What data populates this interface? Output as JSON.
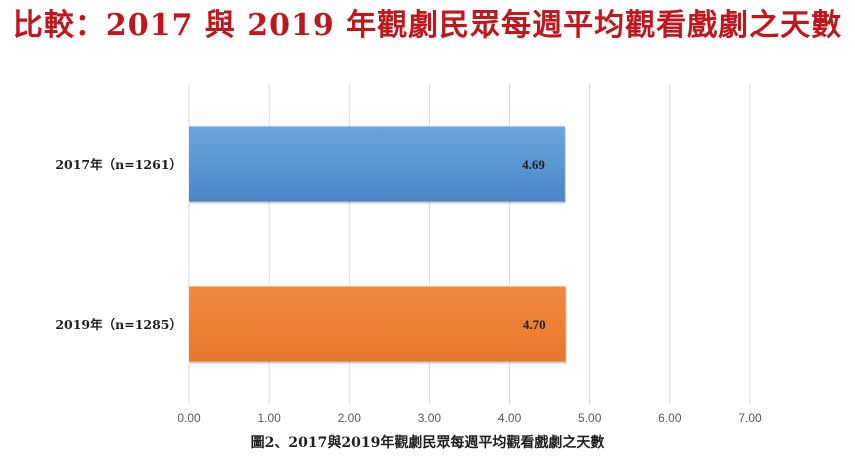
{
  "title": "比較：2017 與 2019 年觀劇民眾每週平均觀看戲劇之天數",
  "caption": "圖2、2017與2019年觀劇民眾每週平均觀看戲劇之天數",
  "chart_data": {
    "type": "bar",
    "orientation": "horizontal",
    "categories": [
      "2017年（n=1261）",
      "2019年（n=1285）"
    ],
    "values": [
      4.69,
      4.7
    ],
    "value_labels": [
      "4.69",
      "4.70"
    ],
    "colors": [
      "#5b9bd5",
      "#ed7d31"
    ],
    "xlim": [
      0,
      7
    ],
    "xticks": [
      "0.00",
      "1.00",
      "2.00",
      "3.00",
      "4.00",
      "5.00",
      "6.00",
      "7.00"
    ],
    "grid": true,
    "legend": false
  }
}
